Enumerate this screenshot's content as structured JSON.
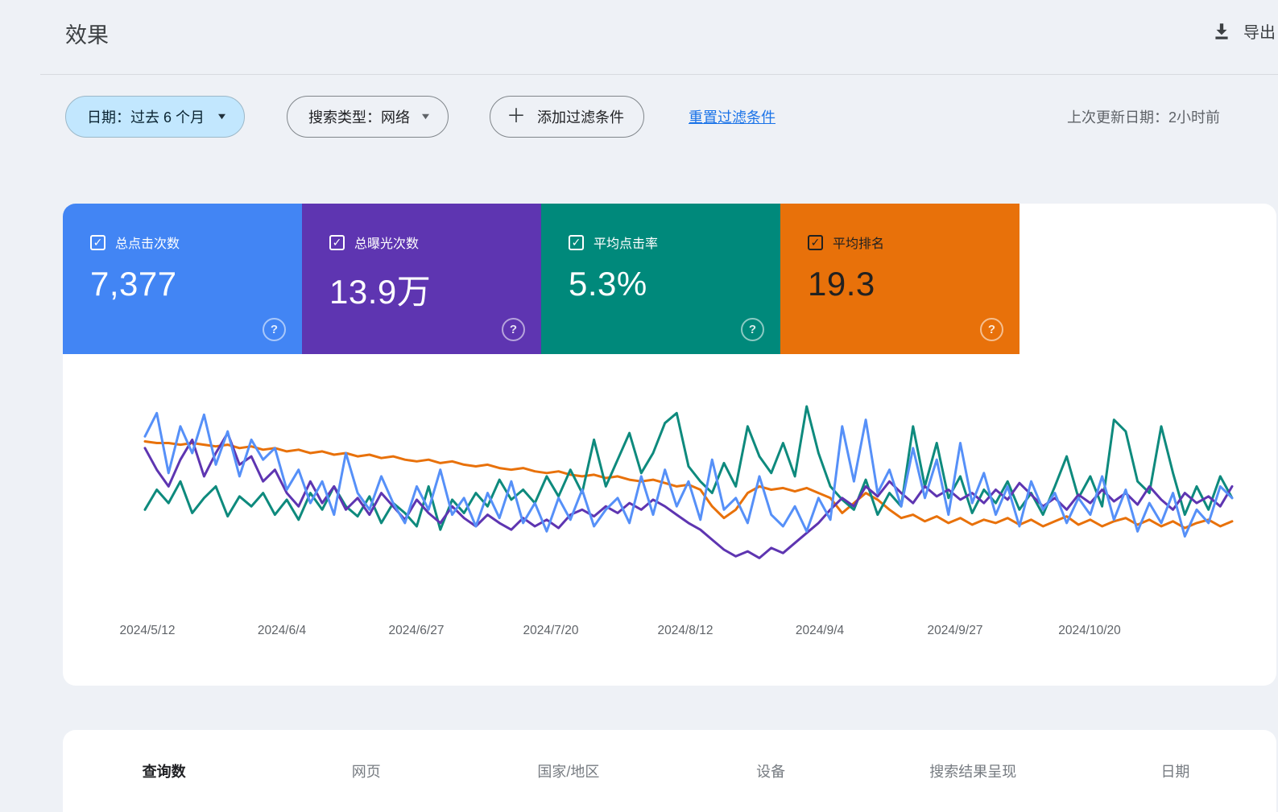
{
  "header": {
    "title": "效果",
    "export_label": "导出"
  },
  "toolbar": {
    "date_filter": "日期：过去 6 个月",
    "search_type_filter": "搜索类型：网络",
    "add_filter_label": "添加过滤条件",
    "reset_filters_label": "重置过滤条件",
    "last_updated": "上次更新日期：2小时前"
  },
  "icons": {
    "download": "download-arrow-with-tray",
    "caret_down": "▼",
    "plus": "＋",
    "help": "?",
    "check": "✓"
  },
  "metric_cards": [
    {
      "id": "clicks",
      "label": "总点击次数",
      "value": "7,377",
      "checked": true,
      "color": "#4285f4",
      "text_color": "#ffffff"
    },
    {
      "id": "impressions",
      "label": "总曝光次数",
      "value": "13.9万",
      "checked": true,
      "color": "#5e35b1",
      "text_color": "#ffffff"
    },
    {
      "id": "ctr",
      "label": "平均点击率",
      "value": "5.3%",
      "checked": true,
      "color": "#00897b",
      "text_color": "#ffffff"
    },
    {
      "id": "position",
      "label": "平均排名",
      "value": "19.3",
      "checked": true,
      "color": "#e8710a",
      "text_color": "#212121"
    }
  ],
  "chart_data": {
    "type": "line",
    "title": "",
    "xlabel": "",
    "ylabel": "",
    "grid": false,
    "legend_position": "none (colored summary cards above act as legend)",
    "y_axis": "hidden — values below are relative heights 0-100 read from the plot",
    "x_tick_labels": [
      "2024/5/12",
      "2024/6/4",
      "2024/6/27",
      "2024/7/20",
      "2024/8/12",
      "2024/9/4",
      "2024/9/27",
      "2024/10/20"
    ],
    "x_tick_positions_svg": [
      105,
      272,
      439,
      606,
      773,
      940,
      1108,
      1275
    ],
    "series": [
      {
        "id": "position",
        "name": "平均排名",
        "color": "#e8710a",
        "values": [
          79,
          78,
          78,
          77,
          78,
          77,
          76,
          77,
          75,
          76,
          74,
          75,
          73,
          74,
          72,
          73,
          71,
          72,
          70,
          71,
          69,
          70,
          68,
          67,
          68,
          66,
          67,
          65,
          64,
          65,
          63,
          62,
          63,
          61,
          60,
          61,
          59,
          58,
          59,
          57,
          58,
          56,
          55,
          56,
          54,
          52,
          53,
          50,
          40,
          33,
          38,
          48,
          52,
          50,
          51,
          49,
          51,
          48,
          45,
          36,
          42,
          48,
          44,
          38,
          33,
          35,
          31,
          34,
          30,
          33,
          29,
          32,
          30,
          33,
          29,
          32,
          28,
          31,
          34,
          29,
          32,
          28,
          31,
          33,
          29,
          32,
          28,
          31,
          27,
          30,
          32,
          28,
          31
        ]
      },
      {
        "id": "ctr",
        "name": "平均点击率",
        "color": "#0e8a7d",
        "values": [
          38,
          50,
          42,
          55,
          36,
          45,
          52,
          34,
          46,
          40,
          48,
          35,
          44,
          32,
          48,
          38,
          52,
          40,
          34,
          46,
          30,
          42,
          36,
          28,
          52,
          26,
          44,
          36,
          48,
          40,
          56,
          44,
          50,
          42,
          58,
          46,
          62,
          48,
          80,
          52,
          68,
          84,
          60,
          72,
          90,
          96,
          64,
          55,
          48,
          66,
          52,
          88,
          70,
          60,
          78,
          58,
          100,
          72,
          52,
          44,
          38,
          56,
          35,
          48,
          40,
          88,
          52,
          78,
          45,
          58,
          36,
          50,
          42,
          55,
          38,
          48,
          35,
          52,
          70,
          45,
          58,
          40,
          92,
          85,
          55,
          48,
          88,
          60,
          35,
          52,
          38,
          58,
          45
        ]
      },
      {
        "id": "impressions",
        "name": "总曝光次数",
        "color": "#5e35b1",
        "values": [
          75,
          62,
          52,
          68,
          80,
          58,
          72,
          84,
          65,
          70,
          55,
          62,
          48,
          40,
          55,
          42,
          52,
          38,
          45,
          35,
          48,
          40,
          32,
          44,
          36,
          30,
          40,
          33,
          28,
          35,
          30,
          26,
          33,
          28,
          32,
          27,
          35,
          38,
          34,
          40,
          36,
          42,
          38,
          44,
          40,
          35,
          30,
          26,
          20,
          14,
          10,
          13,
          9,
          15,
          12,
          18,
          24,
          30,
          38,
          45,
          40,
          52,
          46,
          55,
          48,
          42,
          52,
          46,
          50,
          44,
          48,
          42,
          50,
          44,
          54,
          47,
          40,
          45,
          38,
          47,
          42,
          50,
          43,
          48,
          41,
          52,
          44,
          38,
          48,
          42,
          46,
          40,
          52
        ]
      },
      {
        "id": "clicks",
        "name": "总点击次数",
        "color": "#5690f8",
        "values": [
          82,
          96,
          60,
          88,
          72,
          95,
          65,
          85,
          58,
          80,
          68,
          75,
          50,
          62,
          42,
          55,
          35,
          72,
          48,
          38,
          58,
          42,
          30,
          52,
          38,
          62,
          35,
          45,
          28,
          48,
          33,
          55,
          30,
          42,
          25,
          45,
          32,
          50,
          28,
          38,
          45,
          30,
          58,
          35,
          62,
          40,
          55,
          32,
          68,
          38,
          45,
          30,
          58,
          35,
          28,
          40,
          25,
          45,
          32,
          88,
          55,
          92,
          48,
          62,
          40,
          75,
          45,
          68,
          35,
          78,
          42,
          60,
          35,
          52,
          28,
          55,
          38,
          48,
          30,
          45,
          35,
          58,
          32,
          50,
          25,
          42,
          30,
          48,
          22,
          38,
          30,
          52,
          45
        ]
      }
    ]
  },
  "tabs": [
    {
      "label": "查询数",
      "active": true
    },
    {
      "label": "网页",
      "active": false
    },
    {
      "label": "国家/地区",
      "active": false
    },
    {
      "label": "设备",
      "active": false
    },
    {
      "label": "搜索结果呈现",
      "active": false
    },
    {
      "label": "日期",
      "active": false
    }
  ]
}
